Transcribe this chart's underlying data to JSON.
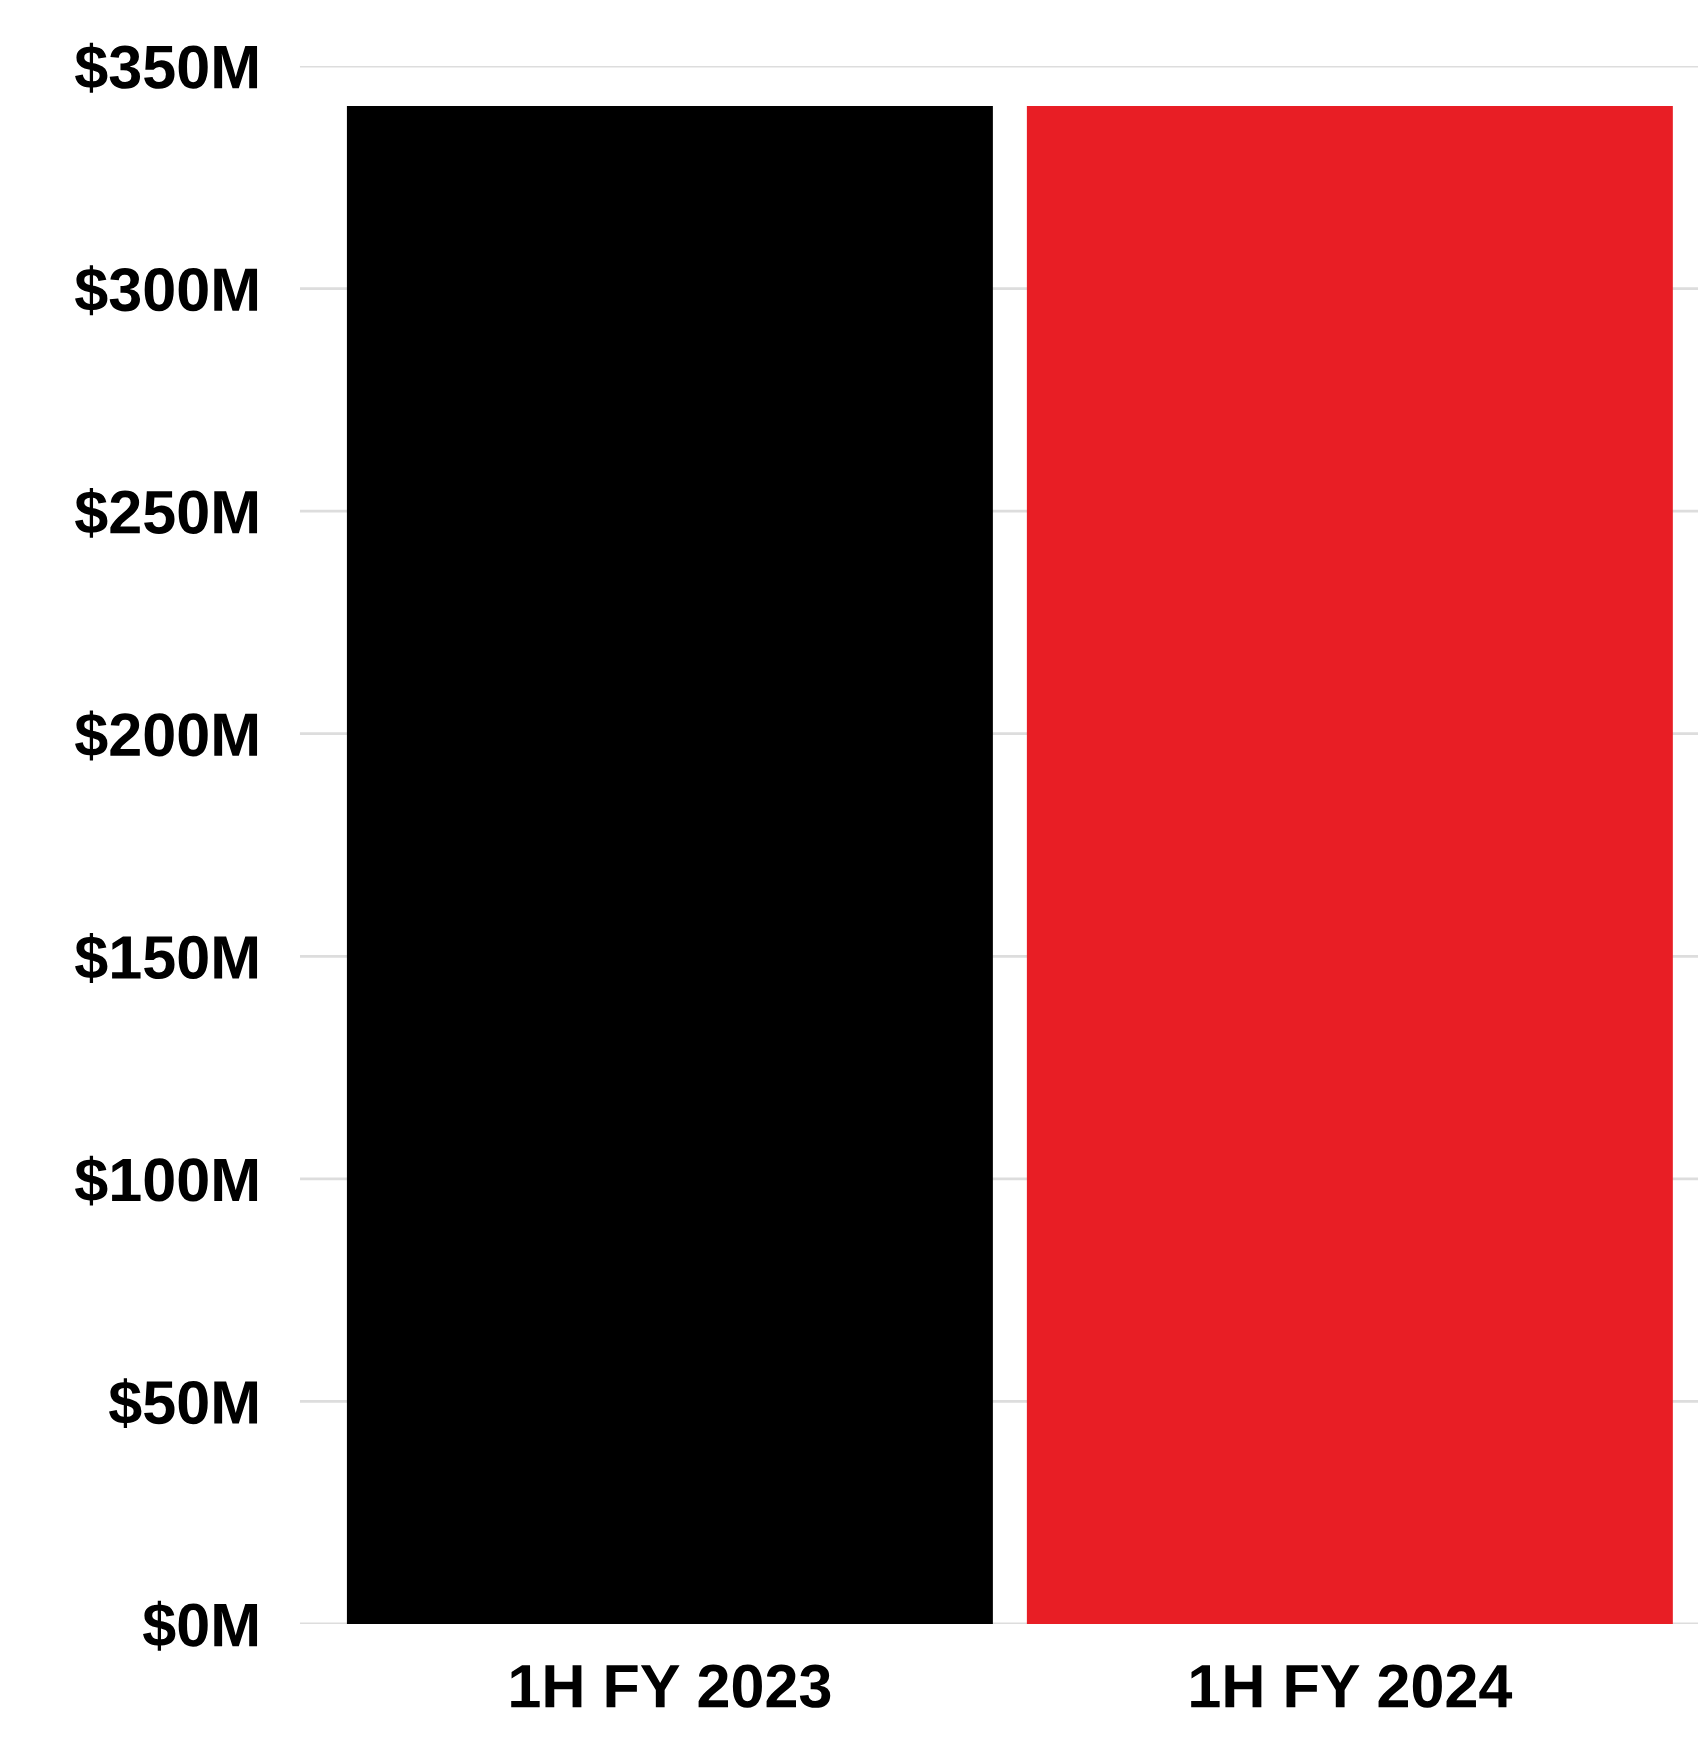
{
  "chart_data": {
    "type": "bar",
    "categories": [
      "1H FY 2023",
      "1H FY 2024"
    ],
    "values": [
      341,
      341
    ],
    "colors": [
      "#000000",
      "#e81e25"
    ],
    "ylim": [
      0,
      350
    ],
    "yticks": [
      {
        "value": 0,
        "label": "$0M"
      },
      {
        "value": 50,
        "label": "$50M"
      },
      {
        "value": 100,
        "label": "$100M"
      },
      {
        "value": 150,
        "label": "$150M"
      },
      {
        "value": 200,
        "label": "$200M"
      },
      {
        "value": 250,
        "label": "$250M"
      },
      {
        "value": 300,
        "label": "$300M"
      },
      {
        "value": 350,
        "label": "$350M"
      }
    ],
    "grid": "y"
  }
}
